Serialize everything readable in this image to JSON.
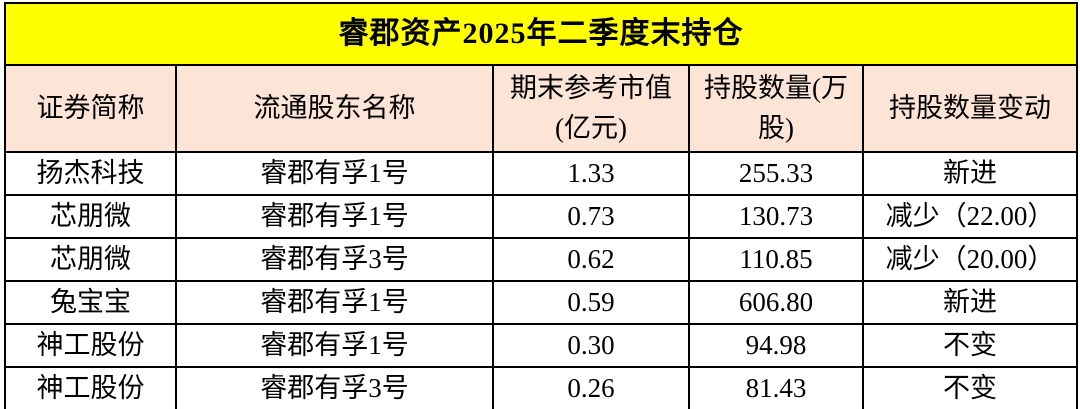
{
  "chart_data": {
    "type": "table",
    "title": "睿郡资产2025年二季度末持仓",
    "columns": [
      "证券简称",
      "流通股东名称",
      "期末参考市值\n(亿元)",
      "持股数量(万\n股)",
      "持股数量变动"
    ],
    "rows": [
      [
        "扬杰科技",
        "睿郡有孚1号",
        "1.33",
        "255.33",
        "新进"
      ],
      [
        "芯朋微",
        "睿郡有孚1号",
        "0.73",
        "130.73",
        "减少（22.00）"
      ],
      [
        "芯朋微",
        "睿郡有孚3号",
        "0.62",
        "110.85",
        "减少（20.00）"
      ],
      [
        "兔宝宝",
        "睿郡有孚1号",
        "0.59",
        "606.80",
        "新进"
      ],
      [
        "神工股份",
        "睿郡有孚1号",
        "0.30",
        "94.98",
        "不变"
      ],
      [
        "神工股份",
        "睿郡有孚3号",
        "0.26",
        "81.43",
        "不变"
      ]
    ],
    "layout": {
      "title_position": "top-banner-row",
      "grid": true,
      "header_rows": 1,
      "alignment": "center"
    }
  },
  "colors": {
    "title_bg": "#FFFF00",
    "header_bg": "#FCE4D6",
    "row_bg": "#FFFFFF",
    "border": "#000000",
    "text": "#000000"
  }
}
